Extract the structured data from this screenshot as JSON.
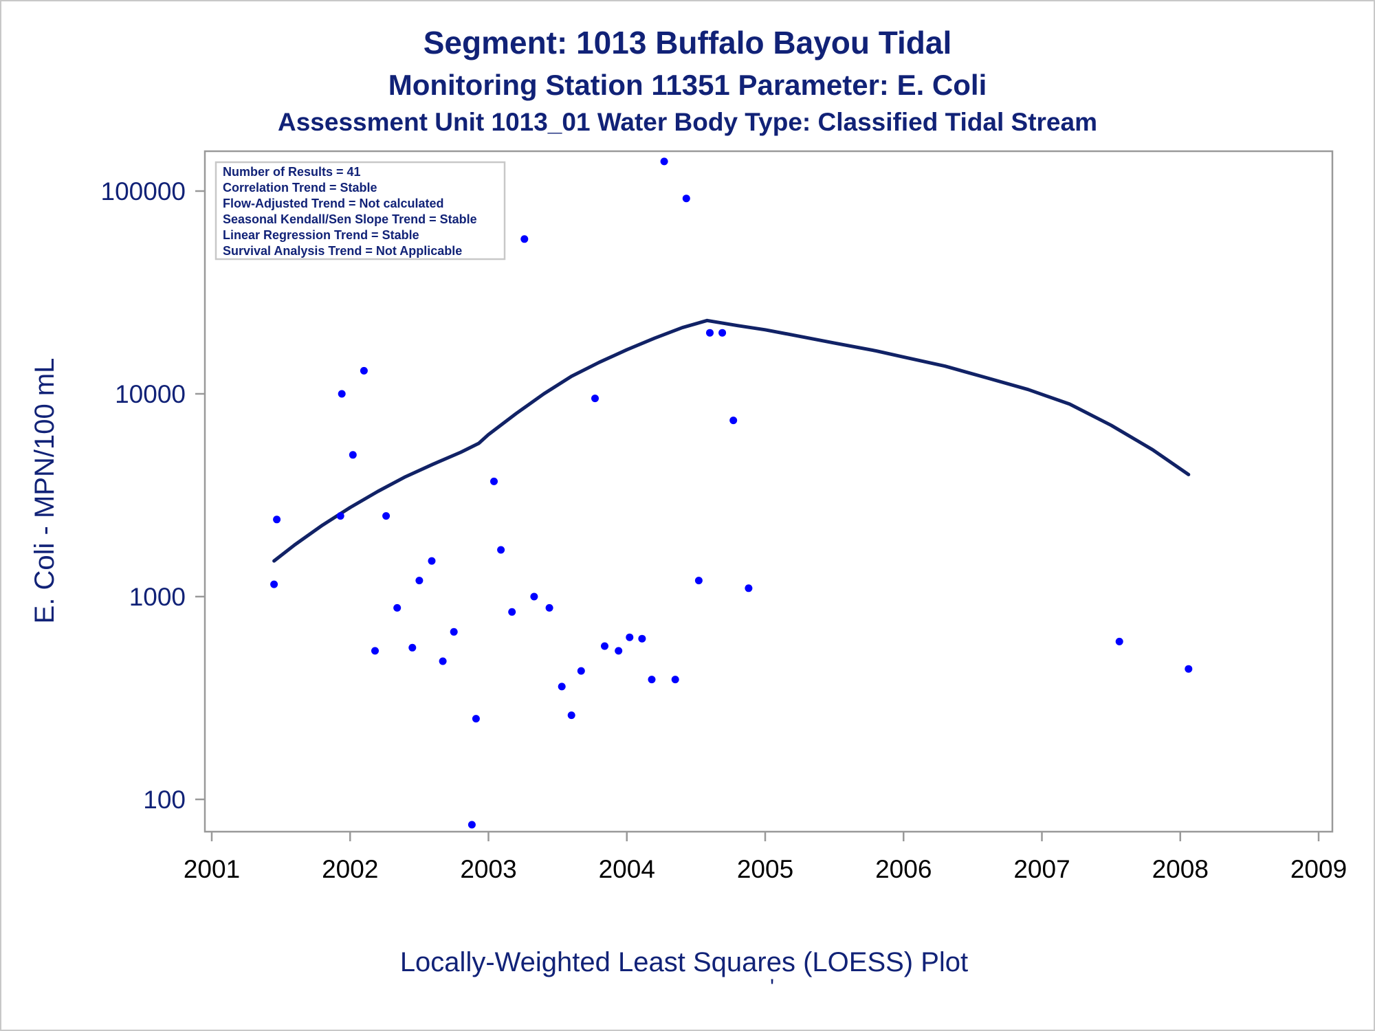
{
  "chart_data": {
    "type": "scatter",
    "title": "Segment: 1013  Buffalo Bayou Tidal",
    "subtitle": "Monitoring Station 11351 Parameter: E. Coli",
    "subtitle2": "Assessment Unit 1013_01   Water Body Type: Classified Tidal Stream",
    "xlabel": "Locally-Weighted Least Squares (LOESS) Plot",
    "ylabel": "E. Coli - MPN/100 mL",
    "footnote": "'",
    "xlim": [
      2001,
      2009
    ],
    "ylim": [
      70,
      160000
    ],
    "yscale": "log",
    "grid": false,
    "x_ticks": [
      "2001",
      "2002",
      "2003",
      "2004",
      "2005",
      "2006",
      "2007",
      "2008",
      "2009"
    ],
    "y_ticks": [
      "100",
      "1000",
      "10000",
      "100000"
    ],
    "y_tick_values": [
      100,
      1000,
      10000,
      100000
    ],
    "stats_box": {
      "placement": "top-left",
      "lines": [
        "Number of Results = 41",
        "Correlation Trend = Stable",
        "Flow-Adjusted Trend = Not calculated",
        "Seasonal Kendall/Sen Slope Trend = Stable",
        "Linear Regression Trend = Stable",
        "Survival Analysis Trend = Not Applicable"
      ]
    },
    "colors": {
      "points": "#0000ff",
      "loess": "#112266",
      "text": "#112277",
      "axis": "#999999"
    },
    "points": [
      [
        2001.45,
        1150
      ],
      [
        2001.47,
        2400
      ],
      [
        2001.93,
        2500
      ],
      [
        2001.94,
        10000
      ],
      [
        2002.02,
        5000
      ],
      [
        2002.1,
        13000
      ],
      [
        2002.18,
        540
      ],
      [
        2002.26,
        2500
      ],
      [
        2002.34,
        880
      ],
      [
        2002.45,
        560
      ],
      [
        2002.5,
        1200
      ],
      [
        2002.59,
        1500
      ],
      [
        2002.67,
        480
      ],
      [
        2002.75,
        670
      ],
      [
        2002.88,
        75
      ],
      [
        2002.91,
        250
      ],
      [
        2003.04,
        3700
      ],
      [
        2003.09,
        1700
      ],
      [
        2003.17,
        840
      ],
      [
        2003.26,
        58000
      ],
      [
        2003.33,
        1000
      ],
      [
        2003.44,
        880
      ],
      [
        2003.53,
        360
      ],
      [
        2003.6,
        260
      ],
      [
        2003.67,
        430
      ],
      [
        2003.77,
        9500
      ],
      [
        2003.84,
        570
      ],
      [
        2003.94,
        540
      ],
      [
        2004.02,
        630
      ],
      [
        2004.11,
        620
      ],
      [
        2004.18,
        390
      ],
      [
        2004.27,
        140000
      ],
      [
        2004.35,
        390
      ],
      [
        2004.43,
        92000
      ],
      [
        2004.52,
        1200
      ],
      [
        2004.6,
        20000
      ],
      [
        2004.69,
        20000
      ],
      [
        2004.77,
        7400
      ],
      [
        2004.88,
        1100
      ],
      [
        2007.56,
        600
      ],
      [
        2008.06,
        440
      ]
    ],
    "loess": [
      [
        2001.45,
        1500
      ],
      [
        2001.6,
        1800
      ],
      [
        2001.8,
        2250
      ],
      [
        2002.0,
        2750
      ],
      [
        2002.2,
        3300
      ],
      [
        2002.4,
        3900
      ],
      [
        2002.6,
        4500
      ],
      [
        2002.8,
        5150
      ],
      [
        2002.93,
        5700
      ],
      [
        2003.0,
        6300
      ],
      [
        2003.2,
        8000
      ],
      [
        2003.4,
        10000
      ],
      [
        2003.6,
        12200
      ],
      [
        2003.8,
        14300
      ],
      [
        2004.0,
        16500
      ],
      [
        2004.2,
        18800
      ],
      [
        2004.4,
        21200
      ],
      [
        2004.58,
        23000
      ],
      [
        2004.8,
        21700
      ],
      [
        2005.0,
        20700
      ],
      [
        2005.2,
        19500
      ],
      [
        2005.5,
        17800
      ],
      [
        2005.8,
        16300
      ],
      [
        2006.0,
        15200
      ],
      [
        2006.3,
        13700
      ],
      [
        2006.6,
        12000
      ],
      [
        2006.9,
        10500
      ],
      [
        2007.2,
        8900
      ],
      [
        2007.5,
        7000
      ],
      [
        2007.8,
        5300
      ],
      [
        2008.06,
        4000
      ]
    ]
  }
}
